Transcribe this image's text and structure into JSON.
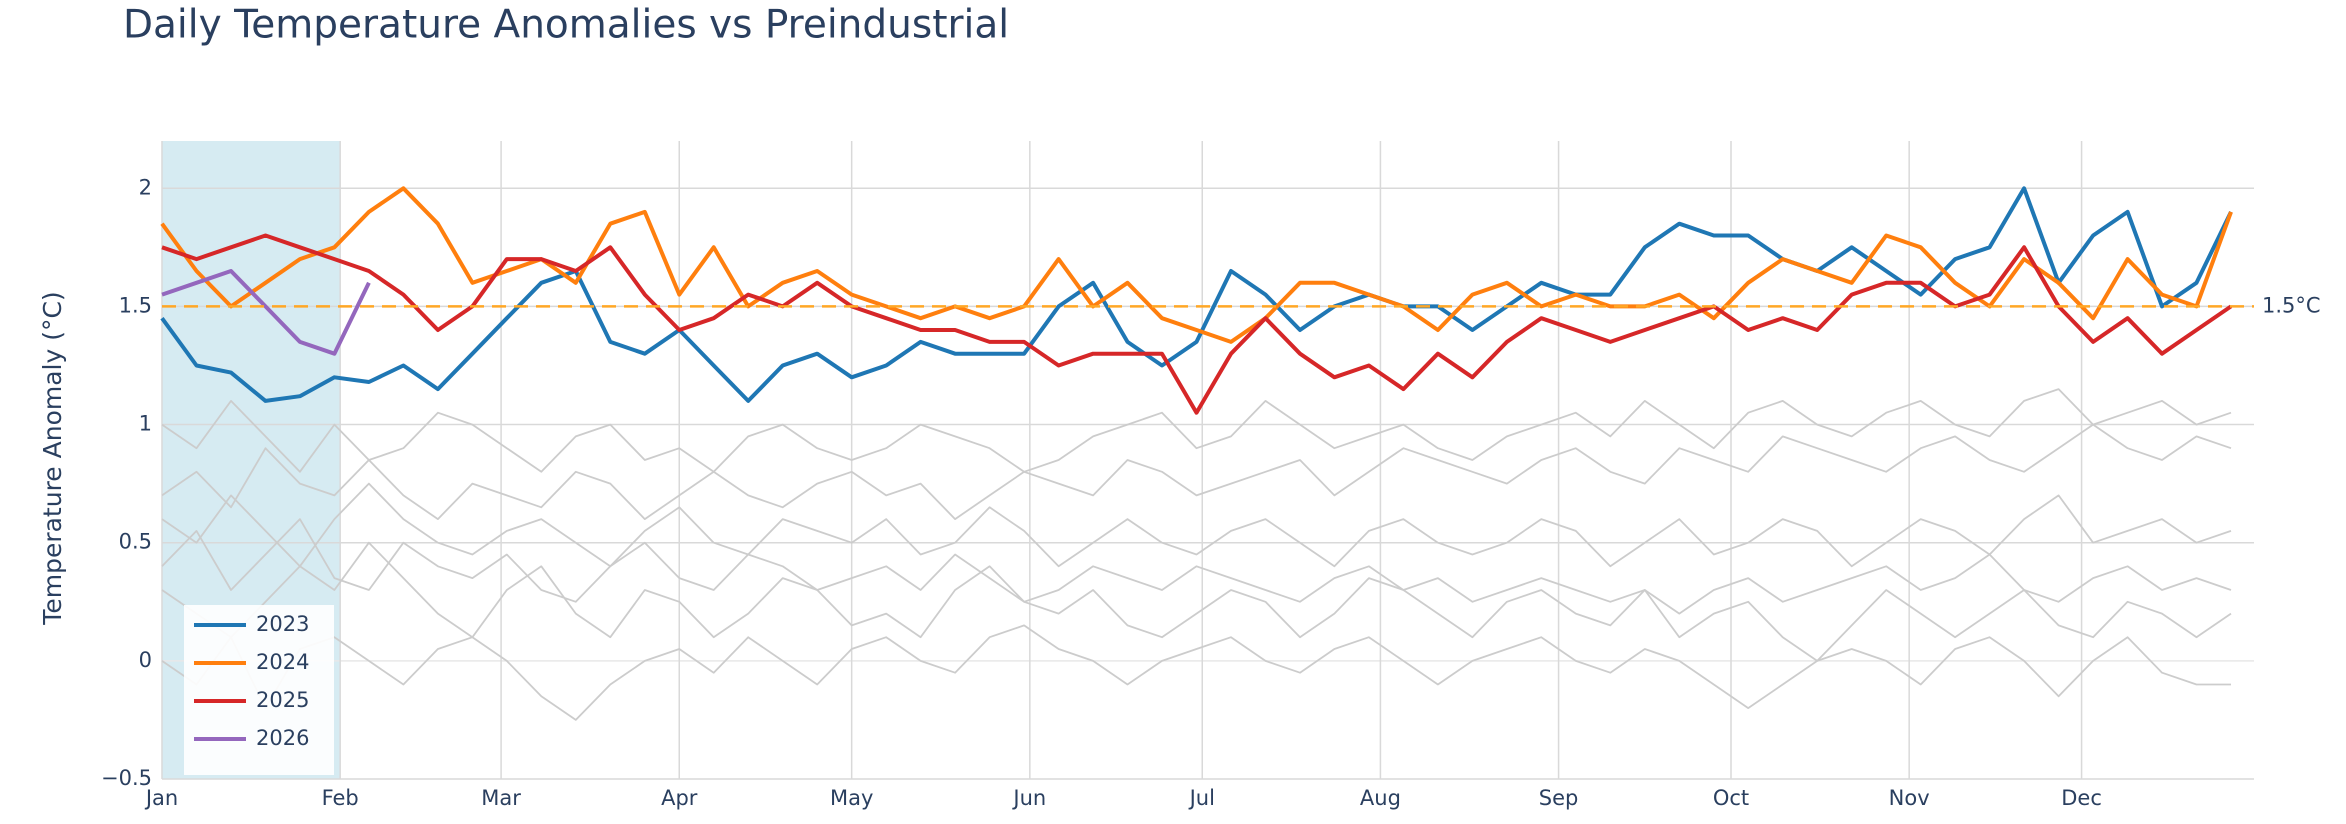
{
  "chart_data": {
    "type": "line",
    "title": "Daily Temperature Anomalies vs Preindustrial",
    "y_label": "Temperature Anomaly (°C)",
    "x": [
      0,
      6,
      12,
      18,
      24,
      30,
      36,
      42,
      48,
      54,
      60,
      66,
      72,
      78,
      84,
      90,
      96,
      102,
      108,
      114,
      120,
      126,
      132,
      138,
      144,
      150,
      156,
      162,
      168,
      174,
      180,
      186,
      192,
      198,
      204,
      210,
      216,
      222,
      228,
      234,
      240,
      246,
      252,
      258,
      264,
      270,
      276,
      282,
      288,
      294,
      300,
      306,
      312,
      318,
      324,
      330,
      336,
      342,
      348,
      354,
      360
    ],
    "xlim": [
      0,
      364
    ],
    "xticks": [
      {
        "value": 0,
        "label": "Jan"
      },
      {
        "value": 31,
        "label": "Feb"
      },
      {
        "value": 59,
        "label": "Mar"
      },
      {
        "value": 90,
        "label": "Apr"
      },
      {
        "value": 120,
        "label": "May"
      },
      {
        "value": 151,
        "label": "Jun"
      },
      {
        "value": 181,
        "label": "Jul"
      },
      {
        "value": 212,
        "label": "Aug"
      },
      {
        "value": 243,
        "label": "Sep"
      },
      {
        "value": 273,
        "label": "Oct"
      },
      {
        "value": 304,
        "label": "Nov"
      },
      {
        "value": 334,
        "label": "Dec"
      }
    ],
    "ylim": [
      -0.5,
      2.2
    ],
    "yticks": [
      {
        "value": -0.5,
        "label": "−0.5"
      },
      0,
      0.5,
      1,
      1.5,
      2
    ],
    "grid": true,
    "legend": "bottom-left",
    "highlight": {
      "x": [
        0,
        31
      ],
      "color": "#add8e6"
    },
    "hline": {
      "value": 1.5,
      "label": "1.5°C",
      "color": "#ffa726"
    },
    "series": [
      {
        "color": "#cccccc",
        "values": [
          0.3,
          0.2,
          0.1,
          0.25,
          0.4,
          0.3,
          0.5,
          0.35,
          0.2,
          0.1,
          0.3,
          0.4,
          0.2,
          0.1,
          0.3,
          0.25,
          0.1,
          0.2,
          0.35,
          0.3,
          0.15,
          0.2,
          0.1,
          0.3,
          0.4,
          0.25,
          0.2,
          0.3,
          0.15,
          0.1,
          0.2,
          0.3,
          0.25,
          0.1,
          0.2,
          0.35,
          0.3,
          0.2,
          0.1,
          0.25,
          0.3,
          0.2,
          0.15,
          0.3,
          0.1,
          0.2,
          0.25,
          0.1,
          0.0,
          0.15,
          0.3,
          0.2,
          0.1,
          0.2,
          0.3,
          0.15,
          0.1,
          0.25,
          0.2,
          0.1,
          0.2
        ]
      },
      {
        "color": "#cccccc",
        "values": [
          1.0,
          0.9,
          1.1,
          0.95,
          0.8,
          1.0,
          0.85,
          0.9,
          1.05,
          1.0,
          0.9,
          0.8,
          0.95,
          1.0,
          0.85,
          0.9,
          0.8,
          0.95,
          1.0,
          0.9,
          0.85,
          0.9,
          1.0,
          0.95,
          0.9,
          0.8,
          0.85,
          0.95,
          1.0,
          1.05,
          0.9,
          0.95,
          1.1,
          1.0,
          0.9,
          0.95,
          1.0,
          0.9,
          0.85,
          0.95,
          1.0,
          1.05,
          0.95,
          1.1,
          1.0,
          0.9,
          1.05,
          1.1,
          1.0,
          0.95,
          1.05,
          1.1,
          1.0,
          0.95,
          1.1,
          1.15,
          1.0,
          1.05,
          1.1,
          1.0,
          1.05
        ]
      },
      {
        "color": "#cccccc",
        "values": [
          0.6,
          0.5,
          0.7,
          0.55,
          0.4,
          0.6,
          0.75,
          0.6,
          0.5,
          0.45,
          0.55,
          0.6,
          0.5,
          0.4,
          0.55,
          0.65,
          0.5,
          0.45,
          0.6,
          0.55,
          0.5,
          0.6,
          0.45,
          0.5,
          0.65,
          0.55,
          0.4,
          0.5,
          0.6,
          0.5,
          0.45,
          0.55,
          0.6,
          0.5,
          0.4,
          0.55,
          0.6,
          0.5,
          0.45,
          0.5,
          0.6,
          0.55,
          0.4,
          0.5,
          0.6,
          0.45,
          0.5,
          0.6,
          0.55,
          0.4,
          0.5,
          0.6,
          0.55,
          0.45,
          0.6,
          0.7,
          0.5,
          0.55,
          0.6,
          0.5,
          0.55
        ]
      },
      {
        "color": "#cccccc",
        "values": [
          0.0,
          -0.1,
          0.1,
          -0.2,
          0.05,
          0.1,
          0.0,
          -0.1,
          0.05,
          0.1,
          0.0,
          -0.15,
          -0.25,
          -0.1,
          0.0,
          0.05,
          -0.05,
          0.1,
          0.0,
          -0.1,
          0.05,
          0.1,
          0.0,
          -0.05,
          0.1,
          0.15,
          0.05,
          0.0,
          -0.1,
          0.0,
          0.05,
          0.1,
          0.0,
          -0.05,
          0.05,
          0.1,
          0.0,
          -0.1,
          0.0,
          0.05,
          0.1,
          0.0,
          -0.05,
          0.05,
          0.0,
          -0.1,
          -0.2,
          -0.1,
          0.0,
          0.05,
          0.0,
          -0.1,
          0.05,
          0.1,
          0.0,
          -0.15,
          0.0,
          0.1,
          -0.05,
          -0.1,
          -0.1
        ]
      },
      {
        "color": "#cccccc",
        "values": [
          0.7,
          0.8,
          0.65,
          0.9,
          0.75,
          0.7,
          0.85,
          0.7,
          0.6,
          0.75,
          0.7,
          0.65,
          0.8,
          0.75,
          0.6,
          0.7,
          0.8,
          0.7,
          0.65,
          0.75,
          0.8,
          0.7,
          0.75,
          0.6,
          0.7,
          0.8,
          0.75,
          0.7,
          0.85,
          0.8,
          0.7,
          0.75,
          0.8,
          0.85,
          0.7,
          0.8,
          0.9,
          0.85,
          0.8,
          0.75,
          0.85,
          0.9,
          0.8,
          0.75,
          0.9,
          0.85,
          0.8,
          0.95,
          0.9,
          0.85,
          0.8,
          0.9,
          0.95,
          0.85,
          0.8,
          0.9,
          1.0,
          0.9,
          0.85,
          0.95,
          0.9
        ]
      },
      {
        "color": "#cccccc",
        "values": [
          0.4,
          0.55,
          0.3,
          0.45,
          0.6,
          0.35,
          0.3,
          0.5,
          0.4,
          0.35,
          0.45,
          0.3,
          0.25,
          0.4,
          0.5,
          0.35,
          0.3,
          0.45,
          0.4,
          0.3,
          0.35,
          0.4,
          0.3,
          0.45,
          0.35,
          0.25,
          0.3,
          0.4,
          0.35,
          0.3,
          0.4,
          0.35,
          0.3,
          0.25,
          0.35,
          0.4,
          0.3,
          0.35,
          0.25,
          0.3,
          0.35,
          0.3,
          0.25,
          0.3,
          0.2,
          0.3,
          0.35,
          0.25,
          0.3,
          0.35,
          0.4,
          0.3,
          0.35,
          0.45,
          0.3,
          0.25,
          0.35,
          0.4,
          0.3,
          0.35,
          0.3
        ]
      },
      {
        "name": "2023",
        "color": "#1f77b4",
        "values": [
          1.45,
          1.25,
          1.22,
          1.1,
          1.12,
          1.2,
          1.18,
          1.25,
          1.15,
          1.3,
          1.45,
          1.6,
          1.65,
          1.35,
          1.3,
          1.4,
          1.25,
          1.1,
          1.25,
          1.3,
          1.2,
          1.25,
          1.35,
          1.3,
          1.3,
          1.3,
          1.5,
          1.6,
          1.35,
          1.25,
          1.35,
          1.65,
          1.55,
          1.4,
          1.5,
          1.55,
          1.5,
          1.5,
          1.4,
          1.5,
          1.6,
          1.55,
          1.55,
          1.75,
          1.85,
          1.8,
          1.8,
          1.7,
          1.65,
          1.75,
          1.65,
          1.55,
          1.7,
          1.75,
          2.0,
          1.6,
          1.8,
          1.9,
          1.5,
          1.6,
          1.9
        ]
      },
      {
        "name": "2024",
        "color": "#ff7f0e",
        "values": [
          1.85,
          1.65,
          1.5,
          1.6,
          1.7,
          1.75,
          1.9,
          2.0,
          1.85,
          1.6,
          1.65,
          1.7,
          1.6,
          1.85,
          1.9,
          1.55,
          1.75,
          1.5,
          1.6,
          1.65,
          1.55,
          1.5,
          1.45,
          1.5,
          1.45,
          1.5,
          1.7,
          1.5,
          1.6,
          1.45,
          1.4,
          1.35,
          1.45,
          1.6,
          1.6,
          1.55,
          1.5,
          1.4,
          1.55,
          1.6,
          1.5,
          1.55,
          1.5,
          1.5,
          1.55,
          1.45,
          1.6,
          1.7,
          1.65,
          1.6,
          1.8,
          1.75,
          1.6,
          1.5,
          1.7,
          1.6,
          1.45,
          1.7,
          1.55,
          1.5,
          1.9
        ]
      },
      {
        "name": "2025",
        "color": "#d62728",
        "values": [
          1.75,
          1.7,
          1.75,
          1.8,
          1.75,
          1.7,
          1.65,
          1.55,
          1.4,
          1.5,
          1.7,
          1.7,
          1.65,
          1.75,
          1.55,
          1.4,
          1.45,
          1.55,
          1.5,
          1.6,
          1.5,
          1.45,
          1.4,
          1.4,
          1.35,
          1.35,
          1.25,
          1.3,
          1.3,
          1.3,
          1.05,
          1.3,
          1.45,
          1.3,
          1.2,
          1.25,
          1.15,
          1.3,
          1.2,
          1.35,
          1.45,
          1.4,
          1.35,
          1.4,
          1.45,
          1.5,
          1.4,
          1.45,
          1.4,
          1.55,
          1.6,
          1.6,
          1.5,
          1.55,
          1.75,
          1.5,
          1.35,
          1.45,
          1.3,
          1.4,
          1.5
        ]
      },
      {
        "name": "2026",
        "color": "#9467bd",
        "values": [
          1.55,
          1.6,
          1.65,
          1.5,
          1.35,
          1.3,
          1.6,
          null,
          null,
          null,
          null,
          null,
          null,
          null,
          null,
          null,
          null,
          null,
          null,
          null,
          null,
          null,
          null,
          null,
          null,
          null,
          null,
          null,
          null,
          null,
          null,
          null,
          null,
          null,
          null,
          null,
          null,
          null,
          null,
          null,
          null,
          null,
          null,
          null,
          null,
          null,
          null,
          null,
          null,
          null,
          null,
          null,
          null,
          null,
          null,
          null,
          null,
          null,
          null,
          null,
          null
        ]
      }
    ]
  }
}
